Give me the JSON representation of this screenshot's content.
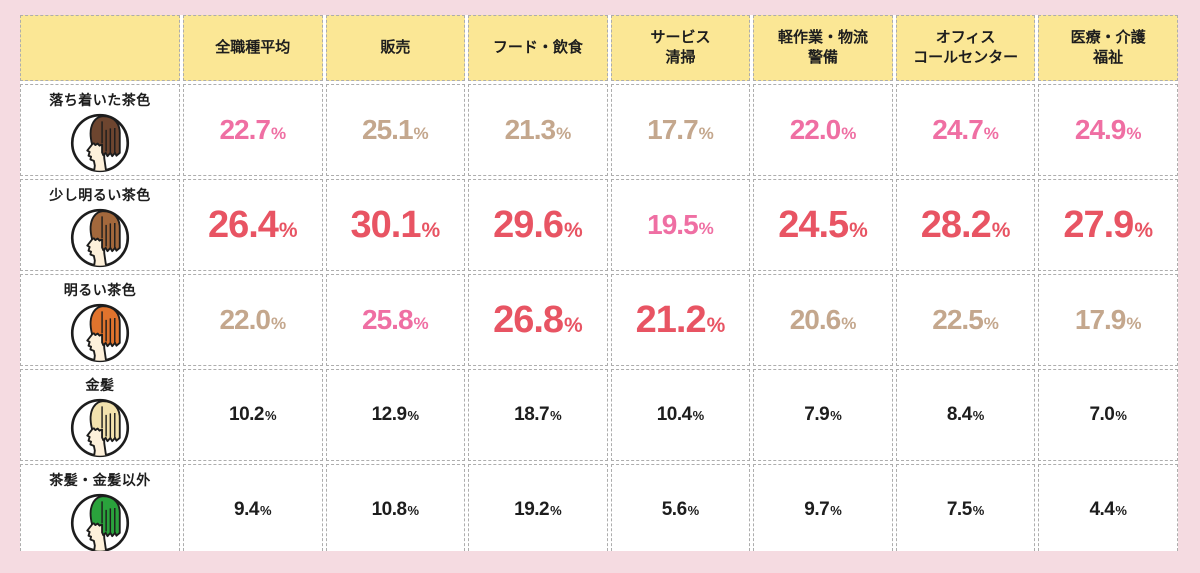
{
  "colors": {
    "page_bg": "#f5dbe1",
    "header_bg": "#fbe795",
    "cell_bg": "#ffffff",
    "gap_bg": "#ffffff",
    "border": "#adadad",
    "text": "#1d1d1d",
    "tier_red": "#e85463",
    "tier_pink": "#ef6fa3",
    "tier_tan": "#c4a78d",
    "tier_plain": "#1d1d1d",
    "face": "#fdf0da",
    "outline": "#1d1d1d"
  },
  "table": {
    "unit": "%",
    "corner_label": "",
    "columns": [
      "全職種平均",
      "販売",
      "フード・飲食",
      "サービス\n清掃",
      "軽作業・物流\n警備",
      "オフィス\nコールセンター",
      "医療・介護\n福祉"
    ],
    "rows": [
      {
        "label": "落ち着いた茶色",
        "icon": "calm-brown-hair-person-icon",
        "hair_color": "#6d452f",
        "cells": [
          {
            "v": "22.7",
            "tier": "pink"
          },
          {
            "v": "25.1",
            "tier": "tan"
          },
          {
            "v": "21.3",
            "tier": "tan"
          },
          {
            "v": "17.7",
            "tier": "tan"
          },
          {
            "v": "22.0",
            "tier": "pink"
          },
          {
            "v": "24.7",
            "tier": "pink"
          },
          {
            "v": "24.9",
            "tier": "pink"
          }
        ]
      },
      {
        "label": "少し明るい茶色",
        "icon": "slightly-bright-brown-hair-person-icon",
        "hair_color": "#a3683c",
        "cells": [
          {
            "v": "26.4",
            "tier": "red"
          },
          {
            "v": "30.1",
            "tier": "red"
          },
          {
            "v": "29.6",
            "tier": "red"
          },
          {
            "v": "19.5",
            "tier": "pink"
          },
          {
            "v": "24.5",
            "tier": "red"
          },
          {
            "v": "28.2",
            "tier": "red"
          },
          {
            "v": "27.9",
            "tier": "red"
          }
        ]
      },
      {
        "label": "明るい茶色",
        "icon": "bright-brown-hair-person-icon",
        "hair_color": "#e0732d",
        "cells": [
          {
            "v": "22.0",
            "tier": "tan"
          },
          {
            "v": "25.8",
            "tier": "pink"
          },
          {
            "v": "26.8",
            "tier": "red"
          },
          {
            "v": "21.2",
            "tier": "red"
          },
          {
            "v": "20.6",
            "tier": "tan"
          },
          {
            "v": "22.5",
            "tier": "tan"
          },
          {
            "v": "17.9",
            "tier": "tan"
          }
        ]
      },
      {
        "label": "金髪",
        "icon": "blonde-hair-person-icon",
        "hair_color": "#f2e2ae",
        "cells": [
          {
            "v": "10.2",
            "tier": "plain"
          },
          {
            "v": "12.9",
            "tier": "plain"
          },
          {
            "v": "18.7",
            "tier": "plain"
          },
          {
            "v": "10.4",
            "tier": "plain"
          },
          {
            "v": "7.9",
            "tier": "plain"
          },
          {
            "v": "8.4",
            "tier": "plain"
          },
          {
            "v": "7.0",
            "tier": "plain"
          }
        ]
      },
      {
        "label": "茶髪・金髪以外",
        "icon": "green-hair-person-icon",
        "hair_color": "#2aa23c",
        "cells": [
          {
            "v": "9.4",
            "tier": "plain"
          },
          {
            "v": "10.8",
            "tier": "plain"
          },
          {
            "v": "19.2",
            "tier": "plain"
          },
          {
            "v": "5.6",
            "tier": "plain"
          },
          {
            "v": "9.7",
            "tier": "plain"
          },
          {
            "v": "7.5",
            "tier": "plain"
          },
          {
            "v": "4.4",
            "tier": "plain"
          }
        ]
      }
    ]
  },
  "chart_data": {
    "type": "table",
    "title": "",
    "columns": [
      "全職種平均",
      "販売",
      "フード・飲食",
      "サービス清掃",
      "軽作業・物流警備",
      "オフィスコールセンター",
      "医療・介護福祉"
    ],
    "row_categories": [
      "落ち着いた茶色",
      "少し明るい茶色",
      "明るい茶色",
      "金髪",
      "茶髪・金髪以外"
    ],
    "values_percent": [
      [
        22.7,
        25.1,
        21.3,
        17.7,
        22.0,
        24.7,
        24.9
      ],
      [
        26.4,
        30.1,
        29.6,
        19.5,
        24.5,
        28.2,
        27.9
      ],
      [
        22.0,
        25.8,
        26.8,
        21.2,
        20.6,
        22.5,
        17.9
      ],
      [
        10.2,
        12.9,
        18.7,
        10.4,
        7.9,
        8.4,
        7.0
      ],
      [
        9.4,
        10.8,
        19.2,
        5.6,
        9.7,
        7.5,
        4.4
      ]
    ],
    "emphasis": [
      [
        "pink",
        "tan",
        "tan",
        "tan",
        "pink",
        "pink",
        "pink"
      ],
      [
        "red",
        "red",
        "red",
        "pink",
        "red",
        "red",
        "red"
      ],
      [
        "tan",
        "pink",
        "red",
        "red",
        "tan",
        "tan",
        "tan"
      ],
      [
        "plain",
        "plain",
        "plain",
        "plain",
        "plain",
        "plain",
        "plain"
      ],
      [
        "plain",
        "plain",
        "plain",
        "plain",
        "plain",
        "plain",
        "plain"
      ]
    ],
    "legend": "red = large emphasized value, pink = medium emphasized value, tan = de-emphasized value, plain = black small value"
  }
}
